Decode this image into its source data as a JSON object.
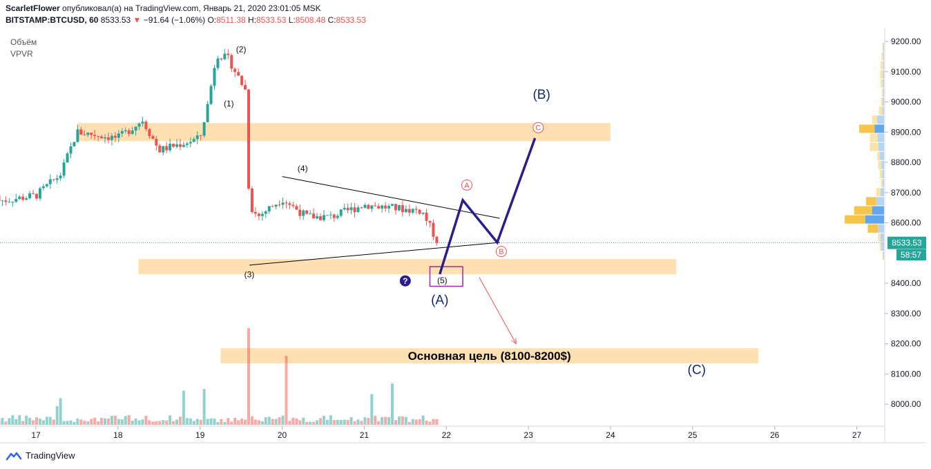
{
  "header": {
    "author": "ScarletFlower",
    "published_text": "опубликовал(а) на TradingView.com, Январь 21, 2020 23:01:05 MSK",
    "symbol": "BITSTAMP:BTCUSD, 60",
    "last": "8533.53",
    "change": "−91.64 (−1.06%)",
    "o_label": "O:",
    "o_value": "8511.38",
    "h_label": "H:",
    "h_value": "8533.53",
    "l_label": "L:",
    "l_value": "8508.48",
    "c_label": "C:",
    "c_value": "8533.53"
  },
  "indicators": [
    "Объём",
    "VPVR"
  ],
  "branding": "TradingView",
  "colors": {
    "up": "#26a69a",
    "down": "#ef5350",
    "zone": "#ffe0b2",
    "wave": "#281e8c",
    "label": "#131722"
  },
  "chart_data": {
    "type": "candlestick",
    "y_ticks": [
      "9200.00",
      "9100.00",
      "9000.00",
      "8900.00",
      "8800.00",
      "8700.00",
      "8600.00",
      "8400.00",
      "8300.00",
      "8200.00",
      "8100.00",
      "8000.00"
    ],
    "x_ticks": [
      "17",
      "18",
      "19",
      "20",
      "21",
      "22",
      "23",
      "24",
      "25",
      "26",
      "27"
    ],
    "ylim": [
      7920,
      9240
    ],
    "price_label": "8533.53",
    "countdown": "58:57",
    "price_series": [
      {
        "day": 17.0,
        "price": 8690
      },
      {
        "day": 17.3,
        "price": 8760
      },
      {
        "day": 17.5,
        "price": 8900
      },
      {
        "day": 18.0,
        "price": 8880
      },
      {
        "day": 18.3,
        "price": 8940
      },
      {
        "day": 18.5,
        "price": 8840
      },
      {
        "day": 19.0,
        "price": 8880
      },
      {
        "day": 19.1,
        "price": 9000
      },
      {
        "day": 19.2,
        "price": 9160
      },
      {
        "day": 19.35,
        "price": 9140
      },
      {
        "day": 19.55,
        "price": 9040
      },
      {
        "day": 19.6,
        "price": 8660
      },
      {
        "day": 19.7,
        "price": 8620
      },
      {
        "day": 20.0,
        "price": 8680
      },
      {
        "day": 20.3,
        "price": 8620
      },
      {
        "day": 20.6,
        "price": 8620
      },
      {
        "day": 21.0,
        "price": 8660
      },
      {
        "day": 21.3,
        "price": 8650
      },
      {
        "day": 21.7,
        "price": 8640
      },
      {
        "day": 21.9,
        "price": 8533.53
      }
    ],
    "zones": [
      {
        "from_day": 17.5,
        "to_day": 24.0,
        "low": 8870,
        "high": 8930
      },
      {
        "from_day": 18.25,
        "to_day": 24.8,
        "low": 8430,
        "high": 8480
      },
      {
        "from_day": 19.25,
        "to_day": 25.8,
        "low": 8135,
        "high": 8185
      }
    ],
    "triangle": {
      "upper": [
        {
          "day": 20.0,
          "price": 8753
        },
        {
          "day": 22.65,
          "price": 8615
        }
      ],
      "lower": [
        {
          "day": 19.6,
          "price": 8460
        },
        {
          "day": 22.65,
          "price": 8535
        }
      ]
    },
    "projection": [
      {
        "day": 21.92,
        "price": 8430
      },
      {
        "day": 22.2,
        "price": 8675
      },
      {
        "day": 22.62,
        "price": 8535
      },
      {
        "day": 23.08,
        "price": 8880
      }
    ],
    "target_arrow": [
      {
        "day": 22.4,
        "price": 8420
      },
      {
        "day": 22.85,
        "price": 8200
      }
    ],
    "box": {
      "from_day": 21.8,
      "to_day": 22.2,
      "low": 8390,
      "high": 8455
    },
    "annotations": [
      {
        "text": "(1)",
        "day": 19.35,
        "price": 8985,
        "style": "small"
      },
      {
        "text": "(2)",
        "day": 19.5,
        "price": 9165,
        "style": "small"
      },
      {
        "text": "(3)",
        "day": 19.6,
        "price": 8420,
        "style": "small"
      },
      {
        "text": "(4)",
        "day": 20.25,
        "price": 8770,
        "style": "small"
      },
      {
        "text": "(5)",
        "day": 21.95,
        "price": 8400,
        "style": "small"
      },
      {
        "text": "(A)",
        "day": 21.92,
        "price": 8330,
        "style": "big"
      },
      {
        "text": "(B)",
        "day": 23.16,
        "price": 9010,
        "style": "big"
      },
      {
        "text": "(C)",
        "day": 25.05,
        "price": 8100,
        "style": "big"
      }
    ],
    "circled": [
      {
        "text": "A",
        "day": 22.25,
        "price": 8725
      },
      {
        "text": "B",
        "day": 22.67,
        "price": 8505
      },
      {
        "text": "C",
        "day": 23.12,
        "price": 8915
      }
    ],
    "question_mark": {
      "text": "?",
      "day": 21.5,
      "price": 8408
    },
    "target_label": "Основная цель (8100-8200$)",
    "volume_profile": [
      {
        "price": 9180,
        "up": 2,
        "down": 2
      },
      {
        "price": 9150,
        "up": 2,
        "down": 4
      },
      {
        "price": 9120,
        "up": 2,
        "down": 6
      },
      {
        "price": 9090,
        "up": 3,
        "down": 6
      },
      {
        "price": 9060,
        "up": 3,
        "down": 5
      },
      {
        "price": 9030,
        "up": 2,
        "down": 3
      },
      {
        "price": 9000,
        "up": 3,
        "down": 4
      },
      {
        "price": 8970,
        "up": 4,
        "down": 8
      },
      {
        "price": 8940,
        "up": 16,
        "down": 12
      },
      {
        "price": 8910,
        "up": 22,
        "down": 36
      },
      {
        "price": 8880,
        "up": 15,
        "down": 18
      },
      {
        "price": 8850,
        "up": 13,
        "down": 20
      },
      {
        "price": 8820,
        "up": 10,
        "down": 6
      },
      {
        "price": 8790,
        "up": 6,
        "down": 8
      },
      {
        "price": 8760,
        "up": 4,
        "down": 6
      },
      {
        "price": 8730,
        "up": 3,
        "down": 4
      },
      {
        "price": 8700,
        "up": 8,
        "down": 10
      },
      {
        "price": 8670,
        "up": 18,
        "down": 24
      },
      {
        "price": 8640,
        "up": 28,
        "down": 42
      },
      {
        "price": 8610,
        "up": 44,
        "down": 48
      },
      {
        "price": 8580,
        "up": 14,
        "down": 24
      },
      {
        "price": 8550,
        "up": 8,
        "down": 6
      },
      {
        "price": 8520,
        "up": 6,
        "down": 4
      },
      {
        "price": 8490,
        "up": 2,
        "down": 2
      }
    ]
  }
}
